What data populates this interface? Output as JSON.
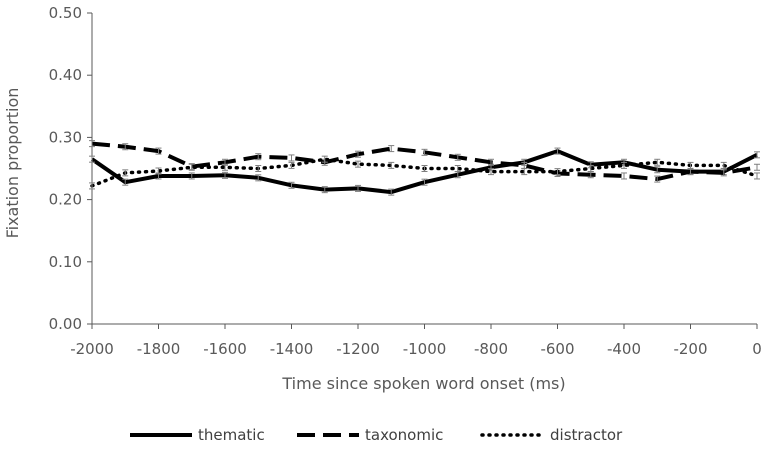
{
  "chart_data": {
    "type": "line",
    "title": "",
    "xlabel": "Time since spoken word onset (ms)",
    "ylabel": "Fixation proportion",
    "xlim": [
      -2000,
      0
    ],
    "ylim": [
      0,
      0.5
    ],
    "x_ticks": [
      -2000,
      -1800,
      -1600,
      -1400,
      -1200,
      -1000,
      -800,
      -600,
      -400,
      -200,
      0
    ],
    "x_tick_labels": [
      "-2000",
      "-1800",
      "-1600",
      "-1400",
      "-1200",
      "-1000",
      "-800",
      "-600",
      "-400",
      "-200",
      "0"
    ],
    "y_ticks": [
      0,
      0.1,
      0.2,
      0.3,
      0.4,
      0.5
    ],
    "y_tick_labels": [
      "0.00",
      "0.10",
      "0.20",
      "0.30",
      "0.40",
      "0.50"
    ],
    "grid": false,
    "legend_position": "bottom",
    "error_bars": true,
    "x": [
      -2000,
      -1900,
      -1800,
      -1700,
      -1600,
      -1500,
      -1400,
      -1300,
      -1200,
      -1100,
      -1000,
      -900,
      -800,
      -700,
      -600,
      -500,
      -400,
      -300,
      -200,
      -100,
      0
    ],
    "series": [
      {
        "name": "thematic",
        "style": "solid",
        "color": "#000000",
        "values": [
          0.265,
          0.228,
          0.238,
          0.238,
          0.239,
          0.235,
          0.223,
          0.216,
          0.218,
          0.212,
          0.228,
          0.24,
          0.252,
          0.26,
          0.278,
          0.256,
          0.26,
          0.248,
          0.245,
          0.245,
          0.272
        ]
      },
      {
        "name": "taxonomic",
        "style": "dashed",
        "color": "#000000",
        "values": [
          0.29,
          0.285,
          0.278,
          0.253,
          0.26,
          0.269,
          0.267,
          0.26,
          0.273,
          0.282,
          0.276,
          0.268,
          0.26,
          0.255,
          0.242,
          0.24,
          0.238,
          0.233,
          0.245,
          0.243,
          0.252
        ]
      },
      {
        "name": "distractor",
        "style": "dotted",
        "color": "#000000",
        "values": [
          0.222,
          0.243,
          0.246,
          0.252,
          0.252,
          0.25,
          0.255,
          0.265,
          0.257,
          0.255,
          0.25,
          0.25,
          0.245,
          0.245,
          0.245,
          0.25,
          0.255,
          0.26,
          0.255,
          0.255,
          0.238
        ]
      }
    ]
  },
  "colors": {
    "axis": "#595959",
    "line": "#000000",
    "error_bar": "#7f7f7f"
  }
}
